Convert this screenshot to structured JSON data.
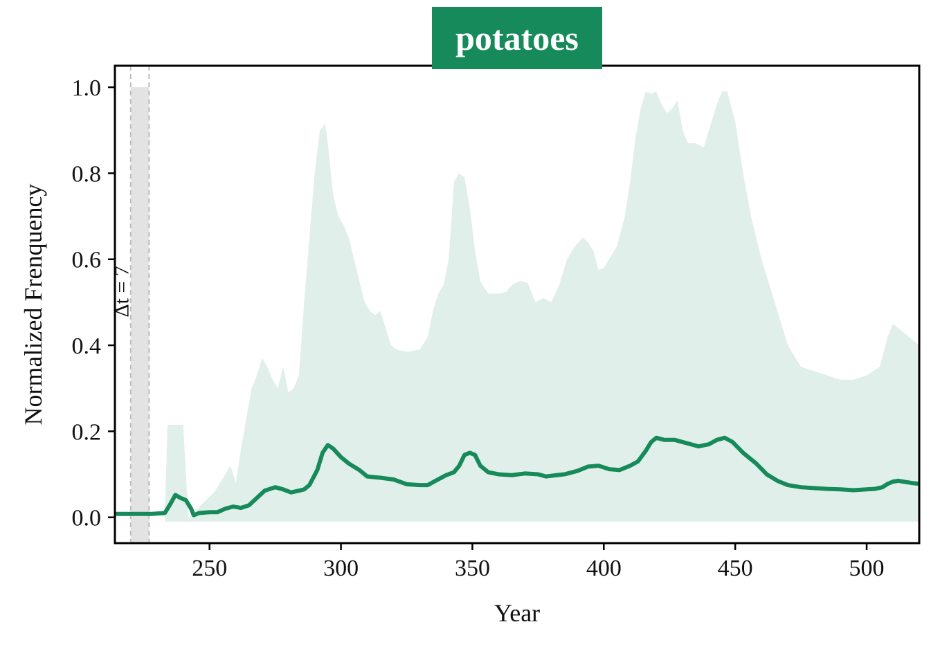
{
  "chart_data": {
    "type": "area",
    "title": "potatoes",
    "xlabel": "Year",
    "ylabel": "Normalized Frenquency",
    "xlim": [
      214,
      520
    ],
    "ylim": [
      -0.06,
      1.05
    ],
    "xticks": [
      250,
      300,
      350,
      400,
      450,
      500
    ],
    "yticks": [
      0.0,
      0.2,
      0.4,
      0.6,
      0.8,
      1.0
    ],
    "ytick_labels": [
      "0.0",
      "0.2",
      "0.4",
      "0.6",
      "0.8",
      "1.0"
    ],
    "grid": false,
    "colors": {
      "accent": "#168a5a",
      "band": "#e0efe9",
      "window": "#e3e3e3",
      "window_line": "#bdbdbd"
    },
    "window": {
      "x_start": 220,
      "x_end": 227,
      "label": "Δt = 7"
    },
    "series": [
      {
        "role": "mean",
        "x": [
          214,
          220,
          228,
          233,
          235,
          237,
          239,
          241,
          243,
          244,
          246,
          250,
          253,
          256,
          259,
          262,
          265,
          268,
          271,
          275,
          278,
          281,
          284,
          286,
          288,
          291,
          293,
          295,
          297,
          300,
          303,
          307,
          310,
          315,
          320,
          325,
          330,
          333,
          336,
          340,
          343,
          345,
          347,
          349,
          351,
          353,
          356,
          360,
          365,
          370,
          375,
          378,
          382,
          385,
          390,
          394,
          398,
          402,
          406,
          410,
          413,
          416,
          418,
          420,
          423,
          427,
          430,
          433,
          436,
          440,
          443,
          446,
          449,
          453,
          458,
          462,
          466,
          470,
          475,
          480,
          485,
          490,
          495,
          500,
          503,
          506,
          508,
          510,
          512,
          514,
          517,
          520
        ],
        "values": [
          0.008,
          0.008,
          0.008,
          0.01,
          0.03,
          0.052,
          0.045,
          0.04,
          0.02,
          0.005,
          0.01,
          0.012,
          0.012,
          0.02,
          0.025,
          0.022,
          0.028,
          0.045,
          0.062,
          0.07,
          0.065,
          0.058,
          0.062,
          0.065,
          0.075,
          0.11,
          0.15,
          0.168,
          0.16,
          0.14,
          0.125,
          0.11,
          0.095,
          0.092,
          0.088,
          0.077,
          0.075,
          0.075,
          0.085,
          0.098,
          0.105,
          0.12,
          0.145,
          0.15,
          0.145,
          0.12,
          0.105,
          0.1,
          0.098,
          0.102,
          0.1,
          0.095,
          0.098,
          0.1,
          0.108,
          0.118,
          0.12,
          0.112,
          0.11,
          0.12,
          0.13,
          0.155,
          0.175,
          0.185,
          0.18,
          0.18,
          0.175,
          0.17,
          0.165,
          0.17,
          0.18,
          0.185,
          0.175,
          0.15,
          0.125,
          0.1,
          0.085,
          0.075,
          0.07,
          0.068,
          0.066,
          0.065,
          0.063,
          0.065,
          0.066,
          0.07,
          0.078,
          0.083,
          0.085,
          0.083,
          0.08,
          0.078
        ]
      },
      {
        "role": "upper-band",
        "x": [
          233,
          234,
          240,
          241,
          242,
          252,
          255,
          258,
          260,
          262,
          266,
          268,
          270,
          272,
          274,
          276,
          278,
          280,
          282,
          284,
          286,
          288,
          290,
          292,
          294,
          295,
          297,
          299,
          301,
          303,
          305,
          307,
          309,
          311,
          313,
          315,
          317,
          319,
          321,
          325,
          330,
          333,
          335,
          337,
          339,
          341,
          343,
          345,
          347,
          349,
          351,
          353,
          356,
          360,
          363,
          365,
          368,
          371,
          374,
          377,
          380,
          383,
          386,
          389,
          392,
          394,
          396,
          398,
          400,
          402,
          405,
          408,
          410,
          412,
          414,
          416,
          418,
          420,
          422,
          424,
          426,
          428,
          430,
          432,
          435,
          438,
          440,
          443,
          445,
          447,
          450,
          453,
          456,
          460,
          465,
          470,
          475,
          480,
          485,
          490,
          495,
          500,
          505,
          508,
          510,
          512,
          514,
          516,
          518,
          520
        ],
        "values": [
          0.0,
          0.215,
          0.215,
          0.1,
          0.0,
          0.06,
          0.09,
          0.12,
          0.08,
          0.16,
          0.3,
          0.33,
          0.37,
          0.35,
          0.32,
          0.3,
          0.35,
          0.29,
          0.3,
          0.33,
          0.5,
          0.65,
          0.8,
          0.9,
          0.915,
          0.87,
          0.75,
          0.7,
          0.68,
          0.65,
          0.6,
          0.55,
          0.5,
          0.48,
          0.47,
          0.48,
          0.44,
          0.4,
          0.39,
          0.385,
          0.39,
          0.42,
          0.48,
          0.52,
          0.54,
          0.6,
          0.78,
          0.8,
          0.79,
          0.72,
          0.62,
          0.55,
          0.52,
          0.52,
          0.525,
          0.54,
          0.55,
          0.545,
          0.5,
          0.51,
          0.5,
          0.54,
          0.6,
          0.63,
          0.65,
          0.64,
          0.62,
          0.575,
          0.58,
          0.6,
          0.63,
          0.7,
          0.78,
          0.88,
          0.95,
          0.99,
          0.985,
          0.99,
          0.96,
          0.94,
          0.95,
          0.97,
          0.9,
          0.87,
          0.87,
          0.86,
          0.9,
          0.96,
          0.99,
          0.99,
          0.92,
          0.8,
          0.7,
          0.6,
          0.5,
          0.4,
          0.35,
          0.34,
          0.33,
          0.32,
          0.32,
          0.33,
          0.35,
          0.42,
          0.45,
          0.44,
          0.43,
          0.42,
          0.41,
          0.4
        ]
      }
    ]
  }
}
